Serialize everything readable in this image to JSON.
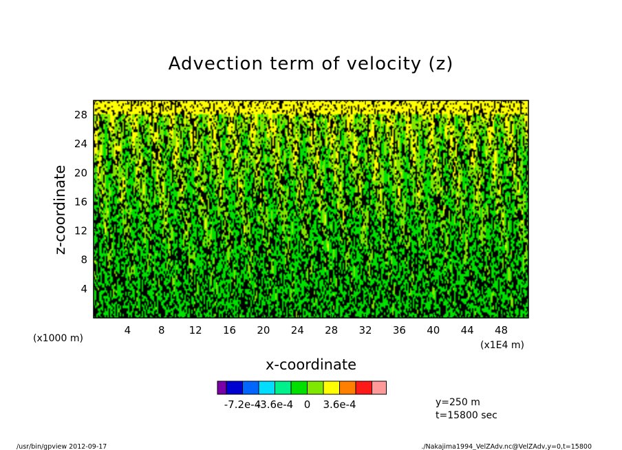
{
  "footer": {
    "left": "/usr/bin/gpview   2012-09-17",
    "right": "./Nakajima1994_VelZAdv.nc@VelZAdv,y=0,t=15800"
  },
  "info": {
    "y_label": "y=250 m",
    "t_label": "t=15800 sec"
  },
  "colors": {
    "palette": [
      "#7a00a8",
      "#0000d0",
      "#0066ff",
      "#00ddff",
      "#00f08c",
      "#00e000",
      "#80e800",
      "#ffff00",
      "#ff8000",
      "#ff1a1a",
      "#ff9a9a"
    ],
    "contour_line": "#000000",
    "frame": "#000000"
  },
  "chart_data": {
    "type": "heatmap",
    "title": "Advection term of velocity (z)",
    "xlabel": "x-coordinate",
    "ylabel": "z-coordinate",
    "x_unit": "(x1E4 m)",
    "y_unit": "(x1000 m)",
    "x_ticks": [
      "4",
      "8",
      "12",
      "16",
      "20",
      "24",
      "28",
      "32",
      "36",
      "40",
      "44",
      "48"
    ],
    "x_tick_values": [
      4,
      8,
      12,
      16,
      20,
      24,
      28,
      32,
      36,
      40,
      44,
      48
    ],
    "y_ticks": [
      "4",
      "8",
      "12",
      "16",
      "20",
      "24",
      "28"
    ],
    "y_tick_values": [
      4,
      8,
      12,
      16,
      20,
      24,
      28
    ],
    "xlim": [
      0,
      51.2
    ],
    "ylim": [
      0,
      30
    ],
    "colorbar": {
      "labels": [
        "-7.2e-4",
        "-3.6e-4",
        "0",
        "3.6e-4"
      ],
      "label_values": [
        -0.00072,
        -0.00036,
        0,
        0.00036
      ],
      "levels": [
        -0.0009,
        -0.00072,
        -0.00054,
        -0.00036,
        -0.00018,
        0,
        0.00018,
        0.00036,
        0.00054,
        0.00072
      ]
    }
  }
}
